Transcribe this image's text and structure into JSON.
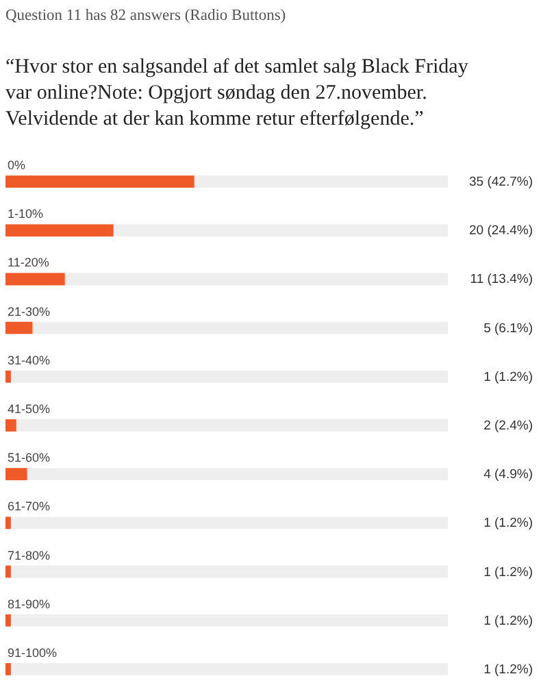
{
  "chart_data": {
    "type": "bar",
    "orientation": "horizontal",
    "title": "Question 11 has 82 answers (Radio Buttons)",
    "subtitle": "“Hvor stor en salgsandel af det samlet salg Black Friday var online?Note: Opgjort søndag den 27.november. Velvidende at der kan komme retur efterfølgende.”",
    "categories": [
      "0%",
      "1-10%",
      "11-20%",
      "21-30%",
      "31-40%",
      "41-50%",
      "51-60%",
      "61-70%",
      "71-80%",
      "81-90%",
      "91-100%"
    ],
    "values": [
      35,
      20,
      11,
      5,
      1,
      2,
      4,
      1,
      1,
      1,
      1
    ],
    "value_labels": [
      "35 (42.7%)",
      "20 (24.4%)",
      "11 (13.4%)",
      "5 (6.1%)",
      "1 (1.2%)",
      "2 (2.4%)",
      "4 (4.9%)",
      "1 (1.2%)",
      "1 (1.2%)",
      "1 (1.2%)",
      "1 (1.2%)"
    ],
    "color": "#f05a28",
    "xlim": [
      0,
      82
    ],
    "tick_labels": "y"
  }
}
